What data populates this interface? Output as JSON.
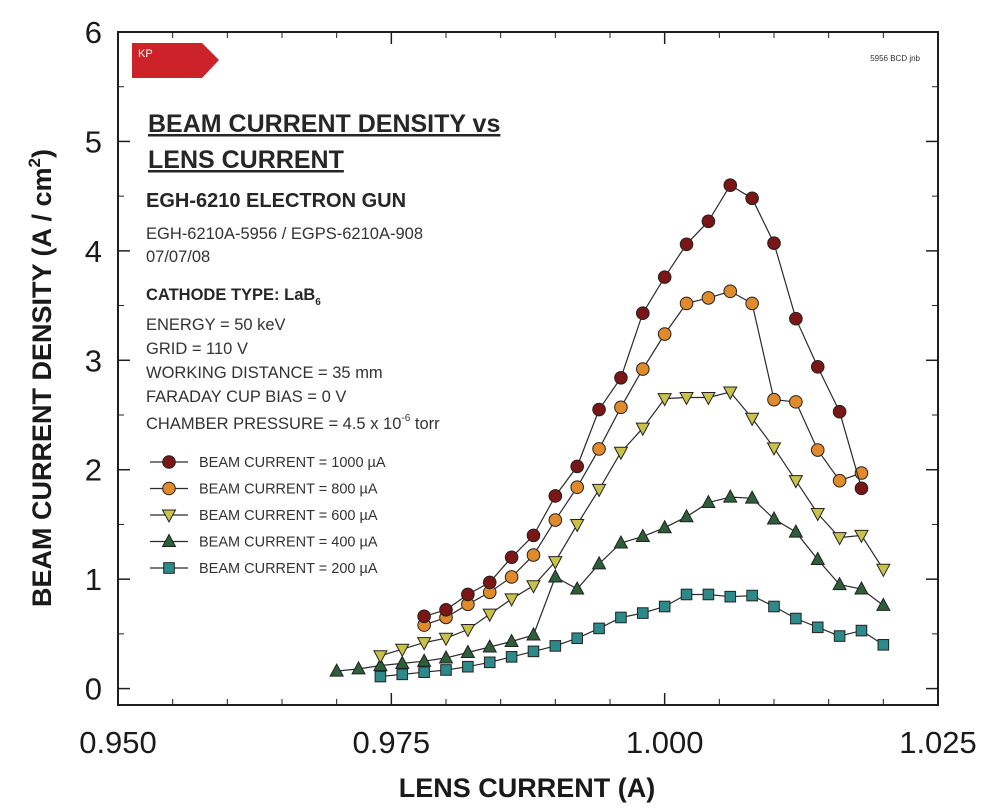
{
  "figure": {
    "badge": "KP",
    "ref_code": "5956 BCD jnb",
    "title_line1": "BEAM CURRENT DENSITY vs",
    "title_line2": "LENS CURRENT",
    "gun": "EGH-6210 ELECTRON GUN",
    "model": "EGH-6210A-5956 / EGPS-6210A-908",
    "date": "07/07/08",
    "cathode": "CATHODE TYPE: LaB",
    "cathode_sub": "6",
    "energy": "ENERGY = 50 keV",
    "grid": "GRID = 110 V",
    "working_distance": "WORKING DISTANCE = 35 mm",
    "faraday": "FARADAY CUP BIAS = 0 V",
    "pressure": "CHAMBER PRESSURE = 4.5 x 10",
    "pressure_exp": "-6",
    "pressure_unit": " torr",
    "badge_color": "#cc2229"
  },
  "chart_data": {
    "type": "line",
    "xlabel": "LENS CURRENT (A)",
    "ylabel": "BEAM CURRENT DENSITY (A / cm",
    "ylabel_sup": "2",
    "ylabel_end": ")",
    "xlim": [
      0.95,
      1.025
    ],
    "ylim": [
      -0.15,
      6
    ],
    "x_ticks": [
      0.95,
      0.975,
      1.0,
      1.025
    ],
    "x_tick_labels": [
      "0.950",
      "0.975",
      "1.000",
      "1.025"
    ],
    "y_ticks": [
      0,
      1,
      2,
      3,
      4,
      5,
      6
    ],
    "y_tick_labels": [
      "0",
      "1",
      "2",
      "3",
      "4",
      "5",
      "6"
    ],
    "legend_position": "left-middle",
    "series": [
      {
        "name": "BEAM CURRENT = 1000 µA",
        "color": "#7a1616",
        "marker": "circle",
        "x": [
          0.978,
          0.98,
          0.982,
          0.984,
          0.986,
          0.988,
          0.99,
          0.992,
          0.994,
          0.996,
          0.998,
          1.0,
          1.002,
          1.004,
          1.006,
          1.008,
          1.01,
          1.012,
          1.014,
          1.016,
          1.018
        ],
        "y": [
          0.66,
          0.72,
          0.86,
          0.97,
          1.2,
          1.4,
          1.76,
          2.03,
          2.55,
          2.84,
          3.43,
          3.76,
          4.06,
          4.27,
          4.6,
          4.48,
          4.07,
          3.38,
          2.94,
          2.53,
          1.83
        ]
      },
      {
        "name": "BEAM CURRENT =   800 µA",
        "color": "#e08a2b",
        "marker": "circle",
        "x": [
          0.978,
          0.98,
          0.982,
          0.984,
          0.986,
          0.988,
          0.99,
          0.992,
          0.994,
          0.996,
          0.998,
          1.0,
          1.002,
          1.004,
          1.006,
          1.008,
          1.01,
          1.012,
          1.014,
          1.016,
          1.018
        ],
        "y": [
          0.58,
          0.65,
          0.77,
          0.88,
          1.02,
          1.22,
          1.54,
          1.84,
          2.19,
          2.57,
          2.92,
          3.24,
          3.52,
          3.57,
          3.63,
          3.52,
          2.64,
          2.62,
          2.18,
          1.9,
          1.97
        ]
      },
      {
        "name": "BEAM CURRENT =   600 µA",
        "color": "#c9c24a",
        "marker": "triangle-down",
        "x": [
          0.974,
          0.976,
          0.978,
          0.98,
          0.982,
          0.984,
          0.986,
          0.988,
          0.99,
          0.992,
          0.994,
          0.996,
          0.998,
          1.0,
          1.002,
          1.004,
          1.006,
          1.008,
          1.01,
          1.012,
          1.014,
          1.016,
          1.018,
          1.02
        ],
        "y": [
          0.3,
          0.36,
          0.42,
          0.46,
          0.54,
          0.68,
          0.82,
          0.94,
          1.16,
          1.5,
          1.82,
          2.16,
          2.38,
          2.65,
          2.66,
          2.66,
          2.71,
          2.47,
          2.2,
          1.9,
          1.6,
          1.38,
          1.4,
          1.09
        ]
      },
      {
        "name": "BEAM CURRENT =   400 µA",
        "color": "#2e5e3a",
        "marker": "triangle-up",
        "x": [
          0.97,
          0.972,
          0.974,
          0.976,
          0.978,
          0.98,
          0.982,
          0.984,
          0.986,
          0.988,
          0.99,
          0.992,
          0.994,
          0.996,
          0.998,
          1.0,
          1.002,
          1.004,
          1.006,
          1.008,
          1.01,
          1.012,
          1.014,
          1.016,
          1.018,
          1.02
        ],
        "y": [
          0.16,
          0.18,
          0.21,
          0.23,
          0.25,
          0.28,
          0.33,
          0.38,
          0.43,
          0.49,
          1.02,
          0.91,
          1.14,
          1.33,
          1.39,
          1.47,
          1.57,
          1.7,
          1.75,
          1.74,
          1.55,
          1.43,
          1.18,
          0.95,
          0.91,
          0.76
        ]
      },
      {
        "name": "BEAM CURRENT =   200 µA",
        "color": "#2d8a8a",
        "marker": "square",
        "x": [
          0.974,
          0.976,
          0.978,
          0.98,
          0.982,
          0.984,
          0.986,
          0.988,
          0.99,
          0.992,
          0.994,
          0.996,
          0.998,
          1.0,
          1.002,
          1.004,
          1.006,
          1.008,
          1.01,
          1.012,
          1.014,
          1.016,
          1.018,
          1.02
        ],
        "y": [
          0.11,
          0.13,
          0.15,
          0.17,
          0.2,
          0.24,
          0.29,
          0.34,
          0.39,
          0.46,
          0.55,
          0.65,
          0.69,
          0.75,
          0.86,
          0.86,
          0.84,
          0.85,
          0.75,
          0.64,
          0.56,
          0.48,
          0.53,
          0.4
        ]
      }
    ]
  }
}
